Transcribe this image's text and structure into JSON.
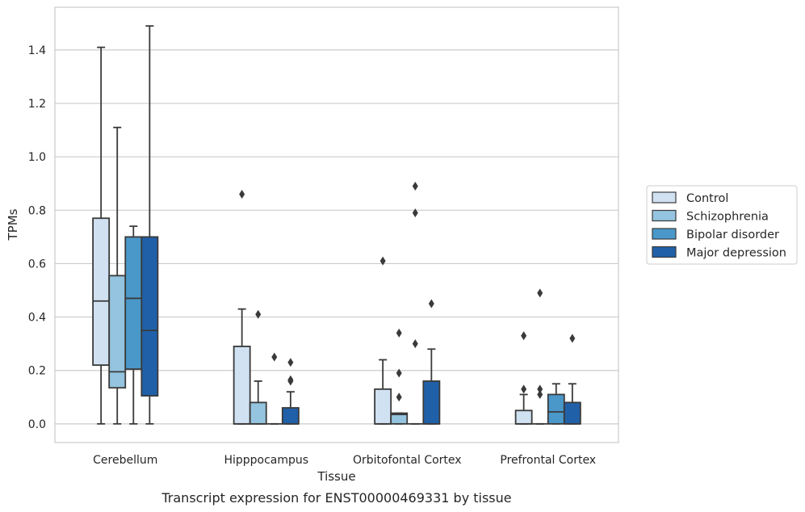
{
  "caption": "Transcript expression for ENST00000469331 by tissue",
  "colors": {
    "grid": "#cccccc",
    "frame": "#cccccc",
    "stroke": "#3a3a3a",
    "series": [
      "#d0e1f2",
      "#94c4df",
      "#4a98c9",
      "#2060a8"
    ]
  },
  "chart_data": {
    "type": "box",
    "xlabel": "Tissue",
    "ylabel": "TPMs",
    "ylim": [
      -0.07,
      1.56
    ],
    "yticks": [
      "0.0",
      "0.2",
      "0.4",
      "0.6",
      "0.8",
      "1.0",
      "1.2",
      "1.4"
    ],
    "grid": "horizontal",
    "legend_position": "right",
    "categories": [
      "Cerebellum",
      "Hipppocampus",
      "Orbitofontal Cortex",
      "Prefrontal Cortex"
    ],
    "series": [
      {
        "name": "Control",
        "boxes": [
          {
            "whisker_low": 0.0,
            "q1": 0.22,
            "median": 0.46,
            "q3": 0.77,
            "whisker_high": 1.41,
            "outliers": []
          },
          {
            "whisker_low": 0.0,
            "q1": 0.0,
            "median": 0.0,
            "q3": 0.29,
            "whisker_high": 0.43,
            "outliers": [
              0.86
            ]
          },
          {
            "whisker_low": 0.0,
            "q1": 0.0,
            "median": 0.0,
            "q3": 0.13,
            "whisker_high": 0.24,
            "outliers": [
              0.61
            ]
          },
          {
            "whisker_low": 0.0,
            "q1": 0.0,
            "median": 0.0,
            "q3": 0.05,
            "whisker_high": 0.11,
            "outliers": [
              0.13,
              0.33
            ]
          }
        ]
      },
      {
        "name": "Schizophrenia",
        "boxes": [
          {
            "whisker_low": 0.0,
            "q1": 0.135,
            "median": 0.195,
            "q3": 0.555,
            "whisker_high": 1.11,
            "outliers": []
          },
          {
            "whisker_low": 0.0,
            "q1": 0.0,
            "median": 0.0,
            "q3": 0.08,
            "whisker_high": 0.16,
            "outliers": [
              0.41
            ]
          },
          {
            "whisker_low": 0.0,
            "q1": 0.0,
            "median": 0.035,
            "q3": 0.04,
            "whisker_high": 0.04,
            "outliers": [
              0.1,
              0.19,
              0.34
            ]
          },
          {
            "whisker_low": 0.0,
            "q1": 0.0,
            "median": 0.0,
            "q3": 0.0,
            "whisker_high": 0.0,
            "outliers": [
              0.11,
              0.13,
              0.49
            ]
          }
        ]
      },
      {
        "name": "Bipolar disorder",
        "boxes": [
          {
            "whisker_low": 0.0,
            "q1": 0.205,
            "median": 0.47,
            "q3": 0.7,
            "whisker_high": 0.74,
            "outliers": []
          },
          {
            "whisker_low": 0.0,
            "q1": 0.0,
            "median": 0.0,
            "q3": 0.0,
            "whisker_high": 0.0,
            "outliers": [
              0.25
            ]
          },
          {
            "whisker_low": 0.0,
            "q1": 0.0,
            "median": 0.0,
            "q3": 0.0,
            "whisker_high": 0.0,
            "outliers": [
              0.3,
              0.79,
              0.89
            ]
          },
          {
            "whisker_low": 0.0,
            "q1": 0.0,
            "median": 0.045,
            "q3": 0.11,
            "whisker_high": 0.15,
            "outliers": []
          }
        ]
      },
      {
        "name": "Major depression",
        "boxes": [
          {
            "whisker_low": 0.0,
            "q1": 0.105,
            "median": 0.35,
            "q3": 0.7,
            "whisker_high": 1.49,
            "outliers": []
          },
          {
            "whisker_low": 0.0,
            "q1": 0.0,
            "median": 0.0,
            "q3": 0.06,
            "whisker_high": 0.12,
            "outliers": [
              0.16,
              0.165,
              0.23
            ]
          },
          {
            "whisker_low": 0.0,
            "q1": 0.0,
            "median": 0.0,
            "q3": 0.16,
            "whisker_high": 0.28,
            "outliers": [
              0.45
            ]
          },
          {
            "whisker_low": 0.0,
            "q1": 0.0,
            "median": 0.0,
            "q3": 0.08,
            "whisker_high": 0.15,
            "outliers": [
              0.32
            ]
          }
        ]
      }
    ]
  }
}
